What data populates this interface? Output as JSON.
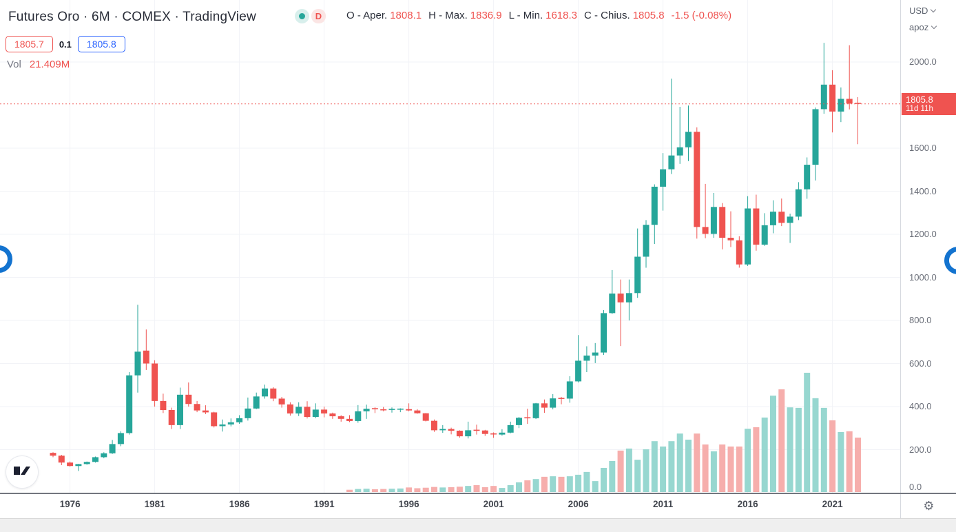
{
  "header": {
    "title": "Futures Oro · 6M · COMEX · TradingView",
    "interval_badge": "D",
    "ohlc": [
      {
        "label": "O - Aper.",
        "value": "1808.1"
      },
      {
        "label": "H - Max.",
        "value": "1836.9"
      },
      {
        "label": "L - Min.",
        "value": "1618.3"
      },
      {
        "label": "C - Chius.",
        "value": "1805.8"
      }
    ],
    "change": "-1.5 (-0.08%)"
  },
  "quote": {
    "bid": "1805.7",
    "spread": "0.1",
    "ask": "1805.8"
  },
  "volume_row": {
    "label": "Vol",
    "value": "21.409M"
  },
  "price_axis": {
    "currency": "USD",
    "unit": "apoz",
    "badge": {
      "price": "1805.8",
      "countdown": "11d 11h"
    }
  },
  "colors": {
    "up": "#26a69a",
    "down": "#ef5350",
    "vol_up": "#97d7d0",
    "vol_down": "#f6aeac",
    "accent_blue": "#2962ff",
    "badge_bg": "#ef5350",
    "grid": "#f2f3f7",
    "ring": "#1373cf"
  },
  "chart_data": {
    "type": "candlestick",
    "title": "Futures Oro 6M COMEX",
    "last_price": 1805.8,
    "last_volume_label": "21.409M",
    "y_axis": {
      "min": 0,
      "max": 2290,
      "ticks": [
        {
          "v": 2000,
          "t": "2000.0"
        },
        {
          "v": 1600,
          "t": "1600.0"
        },
        {
          "v": 1400,
          "t": "1400.0"
        },
        {
          "v": 1200,
          "t": "1200.0"
        },
        {
          "v": 1000,
          "t": "1000.0"
        },
        {
          "v": 800,
          "t": "800.0"
        },
        {
          "v": 600,
          "t": "600.0"
        },
        {
          "v": 400,
          "t": "400.0"
        },
        {
          "v": 200,
          "t": "200.0"
        },
        {
          "v": 0,
          "t": "0.0"
        }
      ]
    },
    "x_axis": {
      "ticks": [
        {
          "year": "1976",
          "idx": 2
        },
        {
          "year": "1981",
          "idx": 12
        },
        {
          "year": "1986",
          "idx": 22
        },
        {
          "year": "1991",
          "idx": 32
        },
        {
          "year": "1996",
          "idx": 42
        },
        {
          "year": "2001",
          "idx": 52
        },
        {
          "year": "2006",
          "idx": 62
        },
        {
          "year": "2011",
          "idx": 72
        },
        {
          "year": "2016",
          "idx": 82
        },
        {
          "year": "2021",
          "idx": 92
        }
      ]
    },
    "candles_format": [
      "period",
      "open",
      "high",
      "low",
      "close",
      "volume_millions"
    ],
    "candles": [
      [
        "1975H1",
        185,
        188,
        165,
        172,
        0
      ],
      [
        "1975H2",
        172,
        176,
        128,
        140,
        0
      ],
      [
        "1976H1",
        140,
        145,
        121,
        124,
        0
      ],
      [
        "1976H2",
        124,
        134,
        101,
        133,
        0
      ],
      [
        "1977H1",
        133,
        145,
        130,
        143,
        0
      ],
      [
        "1977H2",
        143,
        168,
        140,
        165,
        0
      ],
      [
        "1978H1",
        165,
        188,
        160,
        183,
        0
      ],
      [
        "1978H2",
        183,
        245,
        180,
        226,
        0
      ],
      [
        "1979H1",
        226,
        285,
        216,
        277,
        0
      ],
      [
        "1979H2",
        277,
        560,
        270,
        545,
        0
      ],
      [
        "1980H1",
        545,
        873,
        465,
        655,
        0
      ],
      [
        "1980H2",
        660,
        758,
        570,
        600,
        0
      ],
      [
        "1981H1",
        600,
        615,
        400,
        426,
        0
      ],
      [
        "1981H2",
        426,
        460,
        370,
        384,
        0
      ],
      [
        "1982H1",
        384,
        395,
        296,
        314,
        0
      ],
      [
        "1982H2",
        314,
        488,
        296,
        455,
        0
      ],
      [
        "1983H1",
        455,
        512,
        400,
        412,
        0
      ],
      [
        "1983H2",
        412,
        426,
        374,
        382,
        0
      ],
      [
        "1984H1",
        382,
        406,
        365,
        373,
        0
      ],
      [
        "1984H2",
        373,
        376,
        303,
        309,
        0
      ],
      [
        "1985H1",
        309,
        340,
        284,
        317,
        0
      ],
      [
        "1985H2",
        317,
        345,
        308,
        327,
        0
      ],
      [
        "1986H1",
        327,
        360,
        320,
        346,
        0
      ],
      [
        "1986H2",
        346,
        442,
        335,
        391,
        0
      ],
      [
        "1987H1",
        391,
        465,
        388,
        447,
        0
      ],
      [
        "1987H2",
        447,
        502,
        437,
        484,
        0
      ],
      [
        "1988H1",
        484,
        490,
        425,
        437,
        0
      ],
      [
        "1988H2",
        437,
        445,
        395,
        410,
        0
      ],
      [
        "1989H1",
        410,
        420,
        358,
        368,
        0
      ],
      [
        "1989H2",
        368,
        420,
        356,
        399,
        0
      ],
      [
        "1990H1",
        399,
        425,
        345,
        352,
        0
      ],
      [
        "1990H2",
        352,
        415,
        346,
        386,
        0
      ],
      [
        "1991H1",
        386,
        400,
        350,
        368,
        0
      ],
      [
        "1991H2",
        368,
        372,
        343,
        355,
        0
      ],
      [
        "1992H1",
        355,
        360,
        330,
        343,
        0
      ],
      [
        "1992H2",
        343,
        360,
        328,
        333,
        0.9
      ],
      [
        "1993H1",
        333,
        407,
        325,
        378,
        1.2
      ],
      [
        "1993H2",
        378,
        409,
        343,
        390,
        1.3
      ],
      [
        "1994H1",
        390,
        397,
        370,
        385,
        1.1
      ],
      [
        "1994H2",
        385,
        398,
        378,
        383,
        1.2
      ],
      [
        "1995H1",
        383,
        396,
        372,
        387,
        1.3
      ],
      [
        "1995H2",
        387,
        392,
        374,
        388,
        1.4
      ],
      [
        "1996H1",
        388,
        415,
        378,
        382,
        1.8
      ],
      [
        "1996H2",
        382,
        388,
        367,
        369,
        1.5
      ],
      [
        "1997H1",
        369,
        370,
        331,
        334,
        1.7
      ],
      [
        "1997H2",
        334,
        340,
        283,
        290,
        2.0
      ],
      [
        "1998H1",
        290,
        314,
        278,
        296,
        1.8
      ],
      [
        "1998H2",
        296,
        302,
        271,
        288,
        1.9
      ],
      [
        "1999H1",
        288,
        290,
        256,
        262,
        2.1
      ],
      [
        "1999H2",
        262,
        330,
        252,
        290,
        2.4
      ],
      [
        "2000H1",
        290,
        316,
        270,
        289,
        2.7
      ],
      [
        "2000H2",
        289,
        292,
        264,
        273,
        1.9
      ],
      [
        "2001H1",
        273,
        280,
        255,
        270,
        2.4
      ],
      [
        "2001H2",
        270,
        295,
        265,
        279,
        1.6
      ],
      [
        "2002H1",
        279,
        330,
        276,
        314,
        2.7
      ],
      [
        "2002H2",
        314,
        352,
        300,
        348,
        3.8
      ],
      [
        "2003H1",
        348,
        390,
        320,
        346,
        4.6
      ],
      [
        "2003H2",
        346,
        417,
        342,
        415,
        5.1
      ],
      [
        "2004H1",
        415,
        433,
        371,
        395,
        6.0
      ],
      [
        "2004H2",
        395,
        458,
        387,
        438,
        6.2
      ],
      [
        "2005H1",
        438,
        445,
        411,
        437,
        6.0
      ],
      [
        "2005H2",
        437,
        541,
        418,
        517,
        6.2
      ],
      [
        "2006H1",
        517,
        732,
        512,
        613,
        6.8
      ],
      [
        "2006H2",
        613,
        680,
        560,
        637,
        7.9
      ],
      [
        "2007H1",
        637,
        695,
        602,
        651,
        4.3
      ],
      [
        "2007H2",
        651,
        848,
        640,
        834,
        9.5
      ],
      [
        "2008H1",
        834,
        1034,
        830,
        925,
        12.2
      ],
      [
        "2008H2",
        925,
        990,
        681,
        884,
        16.3
      ],
      [
        "2009H1",
        884,
        990,
        800,
        927,
        17.1
      ],
      [
        "2009H2",
        927,
        1227,
        905,
        1096,
        12.7
      ],
      [
        "2010H1",
        1096,
        1266,
        1045,
        1244,
        16.8
      ],
      [
        "2010H2",
        1244,
        1432,
        1155,
        1421,
        20.0
      ],
      [
        "2011H1",
        1421,
        1577,
        1310,
        1502,
        17.9
      ],
      [
        "2011H2",
        1502,
        1923,
        1480,
        1566,
        20.0
      ],
      [
        "2012H1",
        1566,
        1792,
        1527,
        1604,
        23.0
      ],
      [
        "2012H2",
        1604,
        1798,
        1540,
        1676,
        20.6
      ],
      [
        "2013H1",
        1676,
        1697,
        1180,
        1234,
        23.0
      ],
      [
        "2013H2",
        1234,
        1434,
        1182,
        1202,
        18.7
      ],
      [
        "2014H1",
        1202,
        1392,
        1184,
        1327,
        16.0
      ],
      [
        "2014H2",
        1327,
        1345,
        1130,
        1184,
        18.7
      ],
      [
        "2015H1",
        1184,
        1307,
        1141,
        1172,
        17.9
      ],
      [
        "2015H2",
        1172,
        1191,
        1045,
        1060,
        17.9
      ],
      [
        "2016H1",
        1060,
        1377,
        1053,
        1320,
        24.9
      ],
      [
        "2016H2",
        1320,
        1384,
        1124,
        1152,
        25.5
      ],
      [
        "2017H1",
        1152,
        1298,
        1146,
        1242,
        29.3
      ],
      [
        "2017H2",
        1242,
        1358,
        1205,
        1305,
        37.9
      ],
      [
        "2018H1",
        1305,
        1366,
        1238,
        1253,
        40.4
      ],
      [
        "2018H2",
        1253,
        1296,
        1160,
        1282,
        33.3
      ],
      [
        "2019H1",
        1282,
        1442,
        1266,
        1409,
        33.1
      ],
      [
        "2019H2",
        1409,
        1557,
        1365,
        1523,
        46.9
      ],
      [
        "2020H1",
        1523,
        1789,
        1450,
        1781,
        36.9
      ],
      [
        "2020H2",
        1781,
        2089,
        1760,
        1895,
        33.1
      ],
      [
        "2021H1",
        1895,
        1962,
        1673,
        1770,
        28.2
      ],
      [
        "2021H2",
        1770,
        1882,
        1721,
        1829,
        23.6
      ],
      [
        "2022H1",
        1829,
        2078,
        1780,
        1807,
        23.9
      ],
      [
        "2022H2",
        1808.1,
        1836.9,
        1618.3,
        1805.8,
        21.409
      ]
    ]
  }
}
